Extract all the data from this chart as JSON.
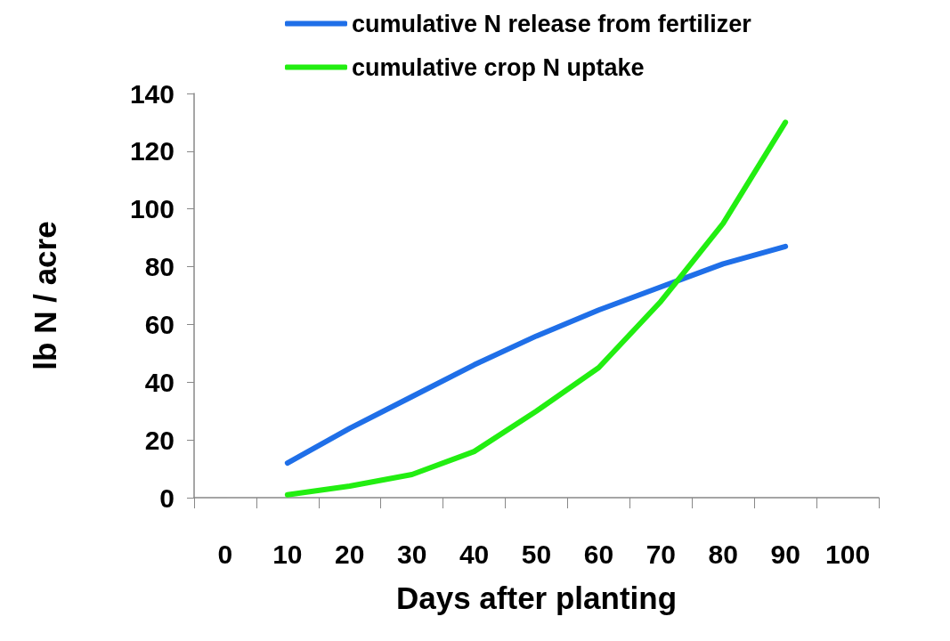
{
  "chart_data": {
    "type": "line",
    "xlabel": "Days after planting",
    "ylabel": "lb N / acre",
    "categories": [
      "0",
      "10",
      "20",
      "30",
      "40",
      "50",
      "60",
      "70",
      "80",
      "90",
      "100"
    ],
    "series": [
      {
        "name": "cumulative N release from fertilizer",
        "color": "#1f6fe8",
        "values": [
          null,
          12,
          24,
          35,
          46,
          56,
          65,
          73,
          81,
          87,
          null
        ]
      },
      {
        "name": "cumulative crop N uptake",
        "color": "#22ee11",
        "values": [
          null,
          1,
          4,
          8,
          16,
          30,
          45,
          68,
          95,
          130,
          null
        ]
      }
    ],
    "ylim": [
      0,
      140
    ],
    "yticks": [
      0,
      20,
      40,
      60,
      80,
      100,
      120,
      140
    ],
    "grid": false,
    "legend": "top"
  }
}
